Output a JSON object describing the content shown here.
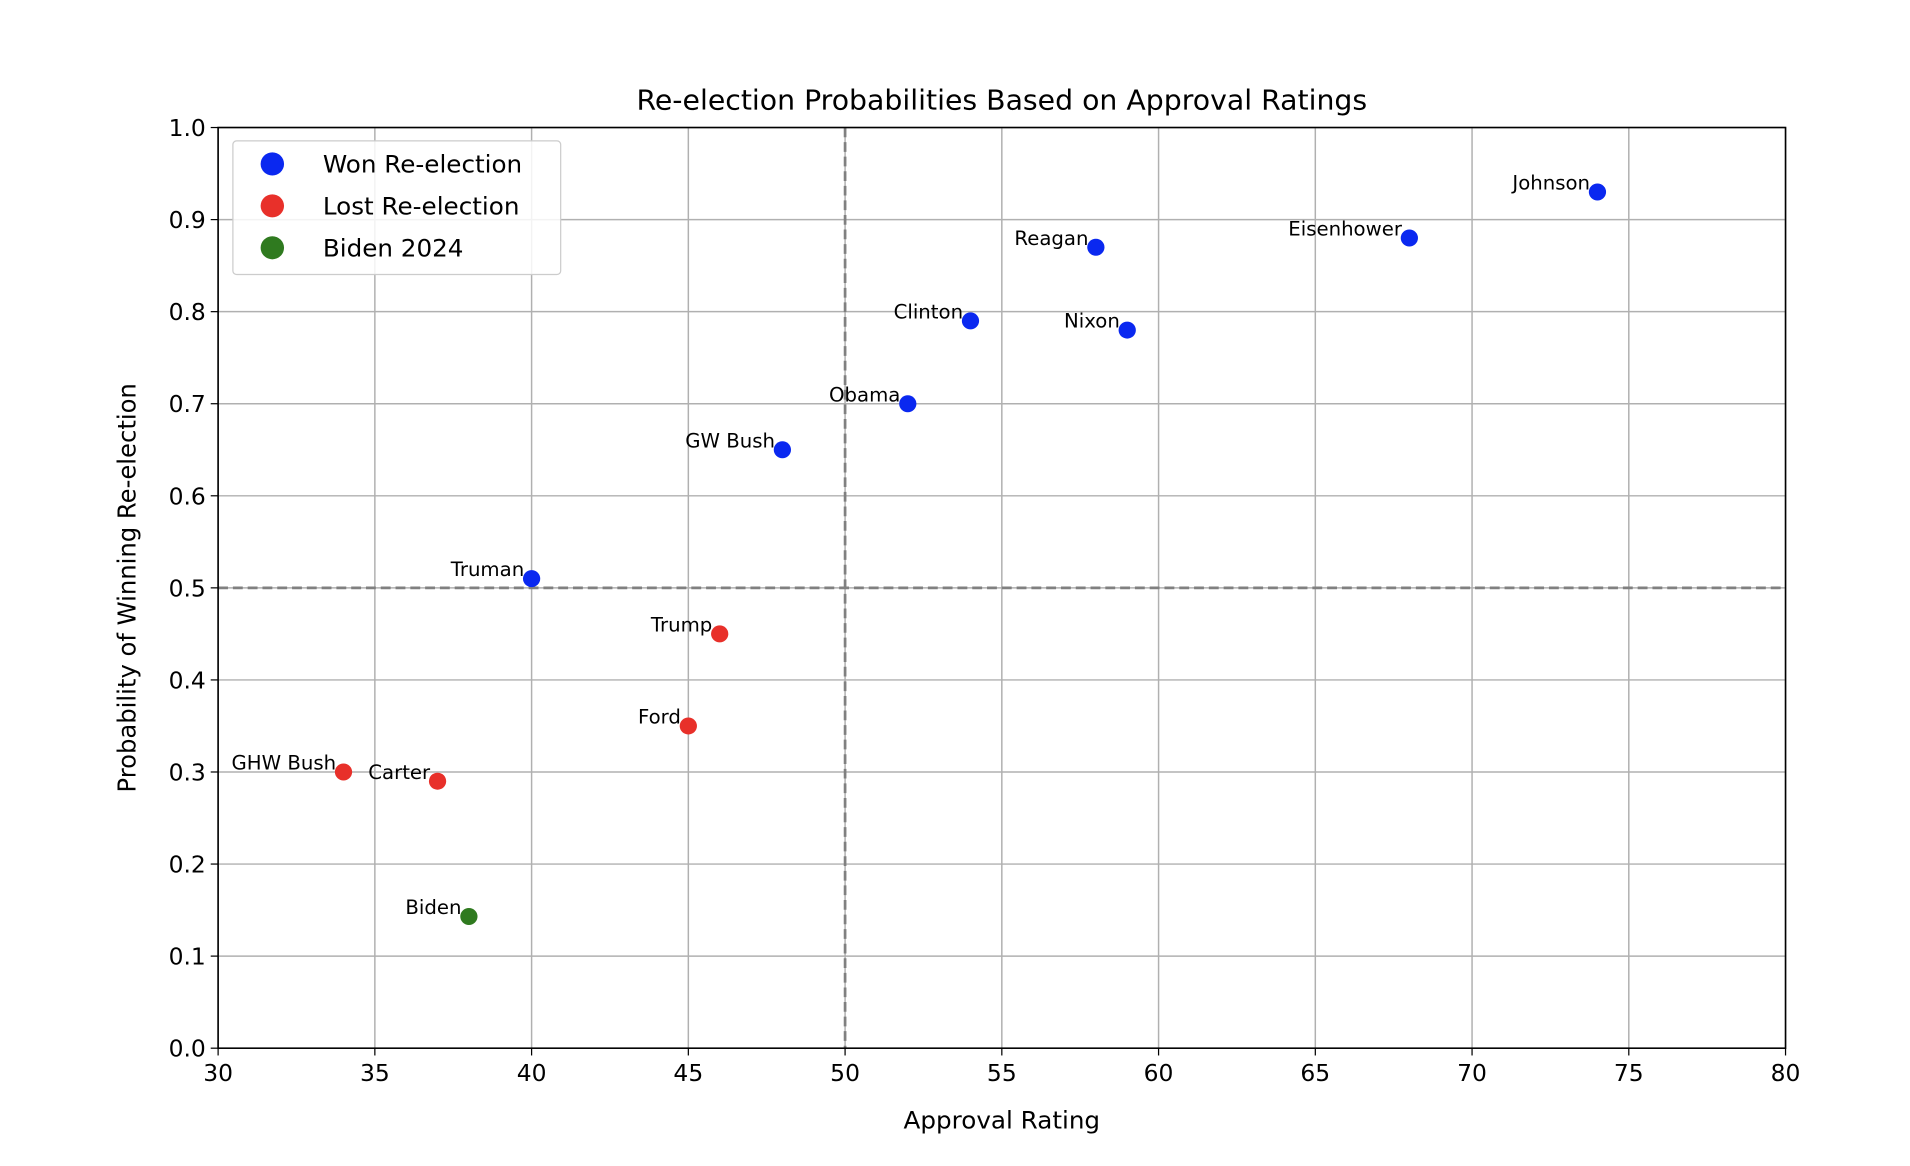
{
  "chart_data": {
    "type": "scatter",
    "title": "Re-election Probabilities Based on Approval Ratings",
    "xlabel": "Approval Rating",
    "ylabel": "Probability of Winning Re-election",
    "xlim": [
      30,
      80
    ],
    "ylim": [
      0,
      1
    ],
    "xticks": [
      "30",
      "35",
      "40",
      "45",
      "50",
      "55",
      "60",
      "65",
      "70",
      "75",
      "80"
    ],
    "yticks": [
      "0.0",
      "0.1",
      "0.2",
      "0.3",
      "0.4",
      "0.5",
      "0.6",
      "0.7",
      "0.8",
      "0.9",
      "1.0"
    ],
    "grid": true,
    "legend_position": "top-left",
    "reference_lines": {
      "x": 50,
      "y": 0.5,
      "style": "dashed",
      "color": "#808080"
    },
    "series": [
      {
        "name": "Won Re-election",
        "color": "#0a28f0",
        "points": [
          {
            "label": "Johnson",
            "x": 74,
            "y": 0.93
          },
          {
            "label": "Eisenhower",
            "x": 68,
            "y": 0.88
          },
          {
            "label": "Reagan",
            "x": 58,
            "y": 0.87
          },
          {
            "label": "Nixon",
            "x": 59,
            "y": 0.78
          },
          {
            "label": "Clinton",
            "x": 54,
            "y": 0.79
          },
          {
            "label": "Obama",
            "x": 52,
            "y": 0.7
          },
          {
            "label": "GW Bush",
            "x": 48,
            "y": 0.65
          },
          {
            "label": "Truman",
            "x": 40,
            "y": 0.51
          }
        ]
      },
      {
        "name": "Lost Re-election",
        "color": "#e8302a",
        "points": [
          {
            "label": "Trump",
            "x": 46,
            "y": 0.45
          },
          {
            "label": "Ford",
            "x": 45,
            "y": 0.35
          },
          {
            "label": "GHW Bush",
            "x": 34,
            "y": 0.3
          },
          {
            "label": "Carter",
            "x": 37,
            "y": 0.29
          }
        ]
      },
      {
        "name": "Biden 2024",
        "color": "#2f7a1f",
        "points": [
          {
            "label": "Biden",
            "x": 38,
            "y": 0.143
          }
        ]
      }
    ]
  }
}
